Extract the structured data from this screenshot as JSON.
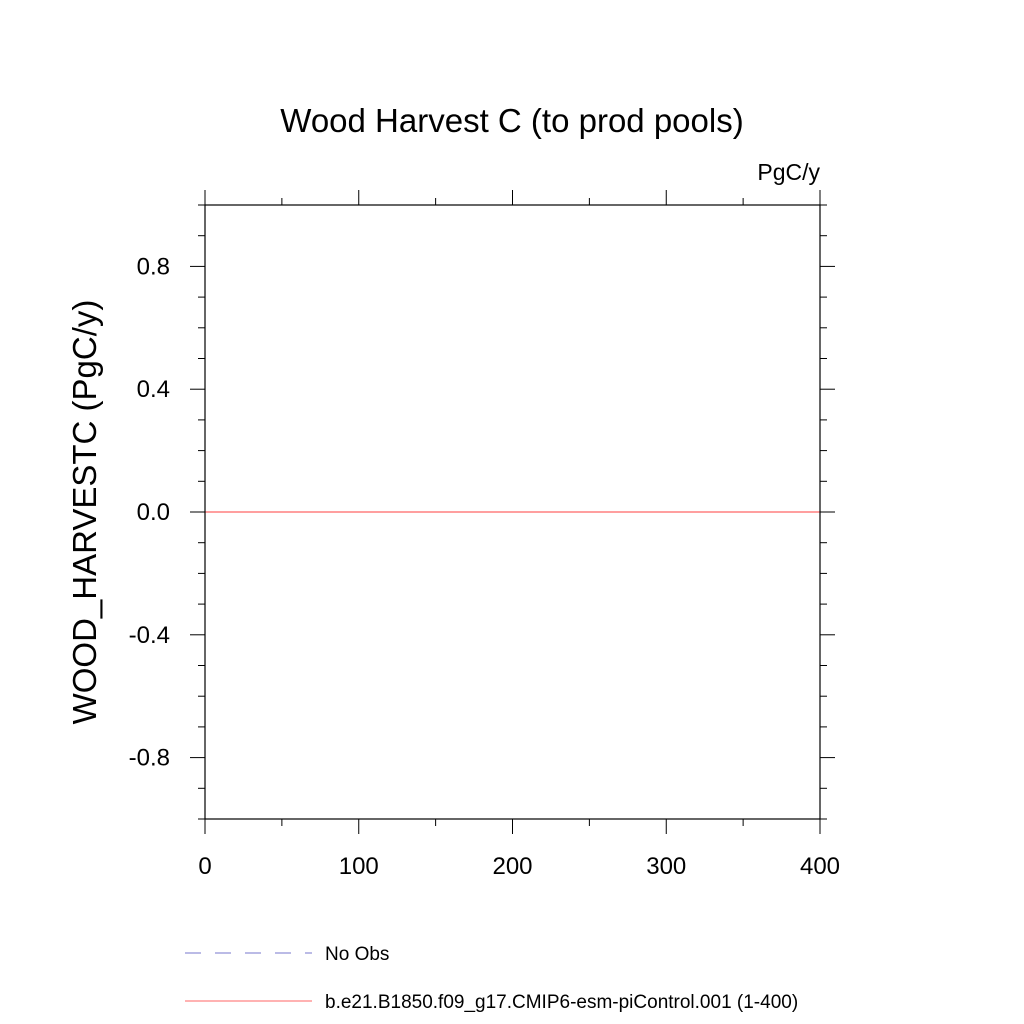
{
  "chart_data": {
    "type": "line",
    "title": "Wood Harvest C (to prod pools)",
    "units": "PgC/y",
    "ylabel": "WOOD_HARVESTC  (PgC/y)",
    "xlabel": "",
    "xlim": [
      0,
      400
    ],
    "ylim": [
      -1.0,
      1.0
    ],
    "x_ticks": [
      0,
      100,
      200,
      300,
      400
    ],
    "x_tick_labels": [
      "0",
      "100",
      "200",
      "300",
      "400"
    ],
    "y_ticks": [
      0.8,
      0.4,
      0.0,
      -0.4,
      -0.8
    ],
    "y_tick_labels": [
      "0.8",
      "0.4",
      "0.0",
      "-0.4",
      "-0.8"
    ],
    "grid": false,
    "legend_position": "bottom",
    "series": [
      {
        "name": "No Obs",
        "color": "#7777cc",
        "dash": "dashed",
        "x": [],
        "y": []
      },
      {
        "name": "b.e21.B1850.f09_g17.CMIP6-esm-piControl.001 (1-400)",
        "color": "#ff6666",
        "dash": "solid",
        "x": [
          0,
          400
        ],
        "y": [
          0.0,
          0.0
        ]
      }
    ]
  }
}
